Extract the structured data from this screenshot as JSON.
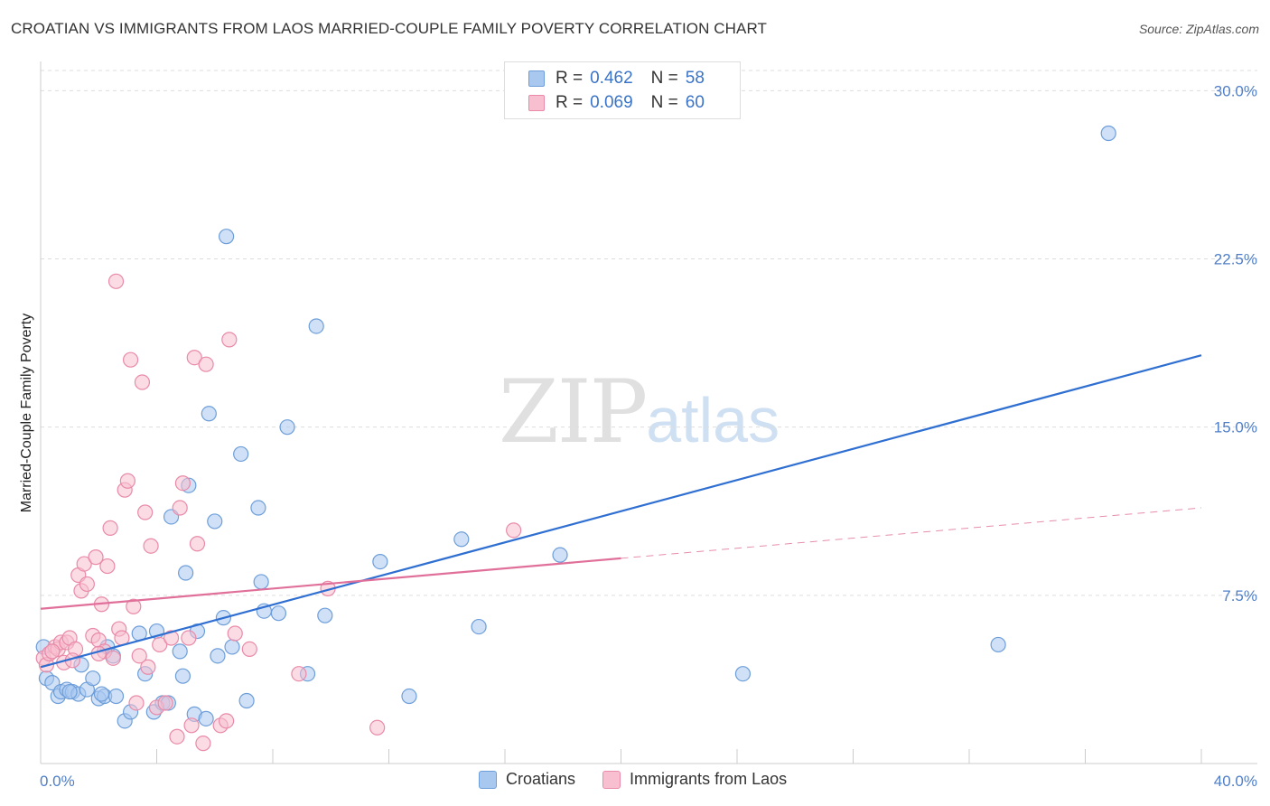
{
  "title": "CROATIAN VS IMMIGRANTS FROM LAOS MARRIED-COUPLE FAMILY POVERTY CORRELATION CHART",
  "source": "Source: ZipAtlas.com",
  "watermark": {
    "zip": "ZIP",
    "atlas": "atlas"
  },
  "legend": {
    "r_label": "R =",
    "n_label": "N =",
    "rows": [
      {
        "r": "0.462",
        "n": "58",
        "color": "#a9c8f0",
        "border": "#6d9ed9"
      },
      {
        "r": "0.069",
        "n": "60",
        "color": "#f8bfd0",
        "border": "#e98aa8"
      }
    ]
  },
  "chart_data": {
    "type": "scatter",
    "title": "CROATIAN VS IMMIGRANTS FROM LAOS MARRIED-COUPLE FAMILY POVERTY CORRELATION CHART",
    "xlabel": "",
    "ylabel": "Married-Couple Family Poverty",
    "xlim": [
      0,
      40
    ],
    "ylim": [
      0,
      30.9
    ],
    "x_tick_labels": [
      "0.0%",
      "40.0%"
    ],
    "y_ticks": [
      7.5,
      15.0,
      22.5,
      30.0
    ],
    "y_tick_labels": [
      "7.5%",
      "15.0%",
      "22.5%",
      "30.0%"
    ],
    "series": [
      {
        "name": "Croatians",
        "color": "#a9c8f0",
        "stroke": "#6d9ed9",
        "line_color": "#2f6fd1",
        "trend": {
          "x0": 0,
          "y0": 4.3,
          "x1": 40,
          "y1": 18.2,
          "solid_until": 40
        },
        "points": [
          [
            0.1,
            5.2
          ],
          [
            0.2,
            3.8
          ],
          [
            0.4,
            3.6
          ],
          [
            0.6,
            3.0
          ],
          [
            0.7,
            3.2
          ],
          [
            0.9,
            3.3
          ],
          [
            1.1,
            3.2
          ],
          [
            1.3,
            3.1
          ],
          [
            1.4,
            4.4
          ],
          [
            1.6,
            3.3
          ],
          [
            1.8,
            3.8
          ],
          [
            2.0,
            2.9
          ],
          [
            2.2,
            3.0
          ],
          [
            2.3,
            5.2
          ],
          [
            2.6,
            3.0
          ],
          [
            2.5,
            4.8
          ],
          [
            2.9,
            1.9
          ],
          [
            3.1,
            2.3
          ],
          [
            3.4,
            5.8
          ],
          [
            3.6,
            4.0
          ],
          [
            3.9,
            2.3
          ],
          [
            4.0,
            5.9
          ],
          [
            4.2,
            2.7
          ],
          [
            4.4,
            2.7
          ],
          [
            4.5,
            11.0
          ],
          [
            4.8,
            5.0
          ],
          [
            4.9,
            3.9
          ],
          [
            5.0,
            8.5
          ],
          [
            5.1,
            12.4
          ],
          [
            5.3,
            2.2
          ],
          [
            5.4,
            5.9
          ],
          [
            5.7,
            2.0
          ],
          [
            5.8,
            15.6
          ],
          [
            6.1,
            4.8
          ],
          [
            6.3,
            6.5
          ],
          [
            6.0,
            10.8
          ],
          [
            6.4,
            23.5
          ],
          [
            6.6,
            5.2
          ],
          [
            6.9,
            13.8
          ],
          [
            7.1,
            2.8
          ],
          [
            7.5,
            11.4
          ],
          [
            7.6,
            8.1
          ],
          [
            7.7,
            6.8
          ],
          [
            8.2,
            6.7
          ],
          [
            8.5,
            15.0
          ],
          [
            9.2,
            4.0
          ],
          [
            9.5,
            19.5
          ],
          [
            9.8,
            6.6
          ],
          [
            11.7,
            9.0
          ],
          [
            12.7,
            3.0
          ],
          [
            14.5,
            10.0
          ],
          [
            15.1,
            6.1
          ],
          [
            17.9,
            9.3
          ],
          [
            24.2,
            4.0
          ],
          [
            33.0,
            5.3
          ],
          [
            36.8,
            28.1
          ],
          [
            1.0,
            3.2
          ],
          [
            2.1,
            3.1
          ]
        ]
      },
      {
        "name": "Immigrants from Laos",
        "color": "#f8bfd0",
        "stroke": "#e98aa8",
        "line_color": "#e0709a",
        "trend": {
          "x0": 0,
          "y0": 6.9,
          "x1": 40,
          "y1": 11.4,
          "solid_until": 20
        },
        "points": [
          [
            0.1,
            4.7
          ],
          [
            0.2,
            4.4
          ],
          [
            0.3,
            4.9
          ],
          [
            0.5,
            5.2
          ],
          [
            0.6,
            5.1
          ],
          [
            0.7,
            5.4
          ],
          [
            0.8,
            4.5
          ],
          [
            0.9,
            5.4
          ],
          [
            1.0,
            5.6
          ],
          [
            1.2,
            5.1
          ],
          [
            1.3,
            8.4
          ],
          [
            1.4,
            7.7
          ],
          [
            1.5,
            8.9
          ],
          [
            1.6,
            8.0
          ],
          [
            1.8,
            5.7
          ],
          [
            1.9,
            9.2
          ],
          [
            2.0,
            5.5
          ],
          [
            2.1,
            7.1
          ],
          [
            2.2,
            5.0
          ],
          [
            2.3,
            8.8
          ],
          [
            2.4,
            10.5
          ],
          [
            2.5,
            4.7
          ],
          [
            2.6,
            21.5
          ],
          [
            2.7,
            6.0
          ],
          [
            2.8,
            5.6
          ],
          [
            2.9,
            12.2
          ],
          [
            3.0,
            12.6
          ],
          [
            3.1,
            18.0
          ],
          [
            3.2,
            7.0
          ],
          [
            3.3,
            2.7
          ],
          [
            3.5,
            17.0
          ],
          [
            3.6,
            11.2
          ],
          [
            3.7,
            4.3
          ],
          [
            3.8,
            9.7
          ],
          [
            4.0,
            2.5
          ],
          [
            4.1,
            5.3
          ],
          [
            4.3,
            2.7
          ],
          [
            4.5,
            5.6
          ],
          [
            4.7,
            1.2
          ],
          [
            4.8,
            11.4
          ],
          [
            4.9,
            12.5
          ],
          [
            5.1,
            5.6
          ],
          [
            5.2,
            1.7
          ],
          [
            5.3,
            18.1
          ],
          [
            5.4,
            9.8
          ],
          [
            5.6,
            0.9
          ],
          [
            5.7,
            17.8
          ],
          [
            6.2,
            1.7
          ],
          [
            6.4,
            1.9
          ],
          [
            6.5,
            18.9
          ],
          [
            6.7,
            5.8
          ],
          [
            7.2,
            5.1
          ],
          [
            8.9,
            4.0
          ],
          [
            9.9,
            7.8
          ],
          [
            11.6,
            1.6
          ],
          [
            16.3,
            10.4
          ],
          [
            0.4,
            5.0
          ],
          [
            1.1,
            4.6
          ],
          [
            2.0,
            4.9
          ],
          [
            3.4,
            4.8
          ]
        ]
      }
    ]
  },
  "bottom_legend": [
    {
      "label": "Croatians",
      "color": "#a9c8f0",
      "border": "#6d9ed9"
    },
    {
      "label": "Immigrants from Laos",
      "color": "#f8bfd0",
      "border": "#e98aa8"
    }
  ]
}
